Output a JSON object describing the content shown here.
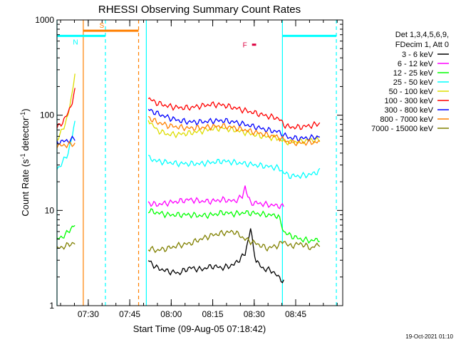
{
  "chart_data": {
    "type": "line",
    "title": "RHESSI Observing Summary Count Rates",
    "xlabel": "Start Time (09-Aug-05 07:18:42)",
    "ylabel": "Count Rate (s",
    "ylabel_sup1": "-1",
    "ylabel_mid": " detector",
    "ylabel_sup2": "-1",
    "ylabel_end": ")",
    "x_unit": "minutes after 07:18:42",
    "xlim": [
      0,
      103.3
    ],
    "ylim": [
      1,
      1000
    ],
    "yscale": "log",
    "x_ticks": [
      {
        "label": "07:30",
        "value": 11.3
      },
      {
        "label": "07:45",
        "value": 26.3
      },
      {
        "label": "08:00",
        "value": 41.3
      },
      {
        "label": "08:15",
        "value": 56.3
      },
      {
        "label": "08:30",
        "value": 71.3
      },
      {
        "label": "08:45",
        "value": 86.3
      }
    ],
    "y_ticks": [
      {
        "label": "1",
        "value": 1
      },
      {
        "label": "10",
        "value": 10
      },
      {
        "label": "100",
        "value": 100
      },
      {
        "label": "1000",
        "value": 1000
      }
    ],
    "legend_header": [
      "Det 1,3,4,5,6,9,",
      "FDecim 1, Att 0"
    ],
    "legend_position": "top-right, outside plot",
    "timestamp": "19-Oct-2021 01:10",
    "series": [
      {
        "name": "3 - 6 keV",
        "color": "#000000",
        "segments": [
          {
            "x": [
              0,
              32,
              33,
              36,
              40,
              44,
              48,
              52,
              56,
              60,
              64,
              68,
              70,
              71,
              72,
              74,
              76,
              78,
              80,
              82
            ],
            "y": [
              null,
              null,
              3,
              2.5,
              2.3,
              2.2,
              2.5,
              2.4,
              2.6,
              2.5,
              2.7,
              3.5,
              6.5,
              4,
              3,
              2.5,
              2.4,
              2.3,
              2,
              1.8
            ]
          }
        ]
      },
      {
        "name": "6 - 12 keV",
        "color": "#ff00ff",
        "segments": [
          {
            "x": [
              33,
              36,
              40,
              44,
              48,
              52,
              56,
              60,
              64,
              67,
              68,
              69,
              70,
              72,
              76,
              80,
              82
            ],
            "y": [
              12,
              11.5,
              12,
              12.5,
              13,
              12.5,
              12.5,
              13,
              12.5,
              14,
              18,
              14,
              12,
              12,
              11.5,
              11.2,
              11
            ]
          }
        ]
      },
      {
        "name": "12 - 25 keV",
        "color": "#00ff00",
        "segments": [
          {
            "x": [
              0,
              3,
              5,
              6.5
            ],
            "y": [
              5,
              5.5,
              6.5,
              7
            ]
          },
          {
            "x": [
              33,
              36,
              40,
              44,
              48,
              52,
              56,
              60,
              64,
              68,
              72,
              76,
              80,
              82,
              84,
              88,
              92,
              95
            ],
            "y": [
              10,
              9.5,
              9,
              9,
              9,
              8.8,
              9,
              9.5,
              9.2,
              9.5,
              9.3,
              9,
              8.8,
              6,
              5.5,
              5,
              4.8,
              5
            ]
          }
        ]
      },
      {
        "name": "25 - 50 keV",
        "color": "#00ffff",
        "segments": [
          {
            "x": [
              0,
              2,
              4,
              5.5,
              6.5
            ],
            "y": [
              27,
              32,
              40,
              60,
              85
            ]
          },
          {
            "x": [
              33,
              36,
              40,
              44,
              48,
              52,
              56,
              60,
              64,
              68,
              72,
              76,
              80,
              82,
              84,
              88,
              92,
              95
            ],
            "y": [
              36,
              33,
              32,
              31,
              31,
              31,
              32,
              33,
              32,
              31,
              30,
              29,
              28,
              25,
              23,
              23,
              24,
              26
            ]
          }
        ]
      },
      {
        "name": "50 - 100 keV",
        "color": "#dddd00",
        "segments": [
          {
            "x": [
              0,
              2,
              4,
              5.5,
              6.5
            ],
            "y": [
              55,
              70,
              100,
              170,
              290
            ]
          },
          {
            "x": [
              33,
              36,
              40,
              44,
              48,
              52,
              56,
              60,
              64,
              68,
              72,
              76,
              80,
              82,
              84,
              88,
              92,
              95
            ],
            "y": [
              90,
              70,
              63,
              63,
              65,
              68,
              72,
              73,
              70,
              66,
              62,
              59,
              57,
              53,
              52,
              53,
              55,
              55
            ]
          }
        ]
      },
      {
        "name": "100 - 300 keV",
        "color": "#ff0000",
        "segments": [
          {
            "x": [
              0,
              2,
              4,
              5.5,
              6.5
            ],
            "y": [
              73,
              85,
              105,
              140,
              180
            ]
          },
          {
            "x": [
              33,
              36,
              40,
              44,
              48,
              52,
              56,
              60,
              64,
              68,
              72,
              76,
              80,
              82,
              84,
              88,
              92,
              95
            ],
            "y": [
              150,
              135,
              125,
              120,
              120,
              125,
              130,
              128,
              120,
              112,
              105,
              98,
              93,
              80,
              75,
              75,
              78,
              82
            ]
          }
        ]
      },
      {
        "name": "300 - 800 keV",
        "color": "#0000ff",
        "segments": [
          {
            "x": [
              0,
              2,
              4,
              6.5
            ],
            "y": [
              52,
              53,
              54,
              57
            ]
          },
          {
            "x": [
              33,
              36,
              40,
              44,
              48,
              52,
              56,
              60,
              64,
              68,
              72,
              76,
              80,
              82,
              84,
              88,
              92,
              95
            ],
            "y": [
              115,
              105,
              95,
              88,
              85,
              85,
              87,
              88,
              85,
              80,
              75,
              70,
              67,
              62,
              58,
              57,
              58,
              60
            ]
          }
        ]
      },
      {
        "name": "800 - 7000 keV",
        "color": "#ff8000",
        "segments": [
          {
            "x": [
              0,
              2,
              4,
              6.5
            ],
            "y": [
              48,
              48,
              49,
              50
            ]
          },
          {
            "x": [
              33,
              36,
              40,
              44,
              48,
              52,
              56,
              60,
              64,
              68,
              72,
              76,
              80,
              82,
              84,
              88,
              92,
              95
            ],
            "y": [
              95,
              85,
              78,
              75,
              73,
              74,
              76,
              77,
              74,
              70,
              66,
              62,
              59,
              55,
              52,
              51,
              52,
              52
            ]
          }
        ]
      },
      {
        "name": "7000 - 15000 keV",
        "color": "#808000",
        "segments": [
          {
            "x": [
              0,
              3,
              5,
              6.5
            ],
            "y": [
              4,
              4.2,
              4.5,
              4.5
            ]
          },
          {
            "x": [
              33,
              36,
              40,
              44,
              48,
              52,
              56,
              60,
              64,
              68,
              72,
              76,
              80,
              82,
              84,
              88,
              92,
              95
            ],
            "y": [
              4,
              3.8,
              4,
              4.3,
              4.5,
              5,
              5.5,
              5.8,
              6,
              5,
              4.5,
              4,
              4.3,
              4.8,
              4.2,
              4.5,
              4,
              4.5
            ]
          }
        ]
      }
    ],
    "vertical_markers": [
      {
        "x": 0,
        "color": "#00ffff",
        "style": "solid"
      },
      {
        "x": 9.5,
        "color": "#ff8000",
        "style": "solid"
      },
      {
        "x": 17.5,
        "color": "#00ffff",
        "style": "dashed"
      },
      {
        "x": 29.5,
        "color": "#ff8000",
        "style": "dashed"
      },
      {
        "x": 32.3,
        "color": "#00ffff",
        "style": "solid"
      },
      {
        "x": 81.5,
        "color": "#00ffff",
        "style": "solid"
      },
      {
        "x": 101,
        "color": "#00ffff",
        "style": "dashed"
      }
    ],
    "bar_annotations": [
      {
        "label": "S",
        "x_start": 9.5,
        "x_end": 29.5,
        "y": 770,
        "color": "#ff8000"
      },
      {
        "label": "N",
        "x_start": 0,
        "x_end": 17.5,
        "y": 680,
        "color": "#00ffff"
      },
      {
        "label": "",
        "x_start": 81.5,
        "x_end": 101,
        "y": 680,
        "color": "#00ffff"
      },
      {
        "label": "F",
        "x_start": 70.5,
        "x_end": 72,
        "y": 550,
        "color": "#dd0040"
      }
    ]
  }
}
